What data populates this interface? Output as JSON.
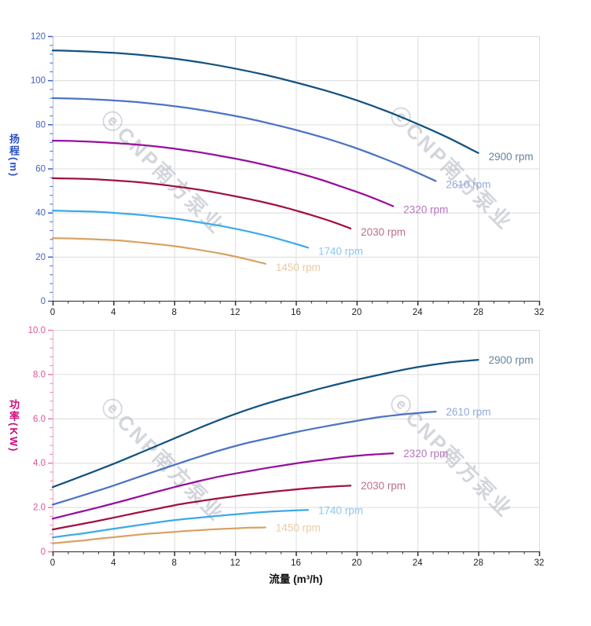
{
  "watermark": {
    "text": "ⓔCNP南方泵业",
    "color": "rgba(158,163,178,0.45)"
  },
  "chart_data": [
    {
      "type": "line",
      "title": "",
      "ylabel": "扬程(m)",
      "xlabel": "流量 (m³/h)",
      "xlim": [
        0,
        32
      ],
      "ylim": [
        0,
        120
      ],
      "x_tick_labels": [
        "0",
        "4",
        "8",
        "12",
        "16",
        "20",
        "24",
        "28",
        "32"
      ],
      "x_tick_values": [
        0,
        4,
        8,
        12,
        16,
        20,
        24,
        28,
        32
      ],
      "x_minor_step": 1,
      "y_tick_labels": [
        "0",
        "20",
        "40",
        "60",
        "80",
        "100",
        "120"
      ],
      "y_tick_values": [
        0,
        20,
        40,
        60,
        80,
        100,
        120
      ],
      "y_minor_step": 4,
      "grid": true,
      "legend": "labels-at-line-ends",
      "axis_title_color": "#2b50c4",
      "tick_label_color": "#4263c7",
      "tick_color": "#4263c7",
      "axis_line_color": "#a9bce0",
      "x_tick_label_color": "#222222",
      "x_axis_line_color": "#444444",
      "grid_color": "#dcdcdc",
      "series": [
        {
          "name": "2900 rpm",
          "rpm": 2900,
          "color": "#135380",
          "label_color": "#68839f",
          "points": [
            [
              0,
              113.5
            ],
            [
              2,
              113.1
            ],
            [
              4,
              112.4
            ],
            [
              6,
              111.3
            ],
            [
              8,
              109.8
            ],
            [
              10,
              107.8
            ],
            [
              12,
              105.3
            ],
            [
              14,
              102.4
            ],
            [
              16,
              99.0
            ],
            [
              18,
              95.2
            ],
            [
              20,
              90.9
            ],
            [
              22,
              85.9
            ],
            [
              24,
              80.2
            ],
            [
              26,
              74.0
            ],
            [
              28,
              67.0
            ]
          ]
        },
        {
          "name": "2610 rpm",
          "rpm": 2610,
          "color": "#4d74c4",
          "label_color": "#93a8dd",
          "points": [
            [
              0,
              91.9
            ],
            [
              1.8,
              91.6
            ],
            [
              3.6,
              91.0
            ],
            [
              5.4,
              90.2
            ],
            [
              7.2,
              88.9
            ],
            [
              9,
              87.3
            ],
            [
              10.8,
              85.3
            ],
            [
              12.6,
              83.0
            ],
            [
              14.4,
              80.2
            ],
            [
              16.2,
              77.1
            ],
            [
              18,
              73.6
            ],
            [
              19.8,
              69.6
            ],
            [
              21.6,
              65.0
            ],
            [
              23.4,
              59.9
            ],
            [
              25.2,
              54.3
            ]
          ]
        },
        {
          "name": "2320 rpm",
          "rpm": 2320,
          "color": "#970f9e",
          "label_color": "#b973c2",
          "points": [
            [
              0,
              72.6
            ],
            [
              1.6,
              72.4
            ],
            [
              3.2,
              71.9
            ],
            [
              4.8,
              71.2
            ],
            [
              6.4,
              70.3
            ],
            [
              8,
              69.0
            ],
            [
              9.6,
              67.4
            ],
            [
              11.2,
              65.5
            ],
            [
              12.8,
              63.4
            ],
            [
              14.4,
              60.9
            ],
            [
              16,
              58.2
            ],
            [
              17.6,
              55.0
            ],
            [
              19.2,
              51.3
            ],
            [
              20.8,
              47.4
            ],
            [
              22.4,
              42.9
            ]
          ]
        },
        {
          "name": "2030 rpm",
          "rpm": 2030,
          "color": "#a01240",
          "label_color": "#b77189",
          "points": [
            [
              0,
              55.6
            ],
            [
              1.4,
              55.4
            ],
            [
              2.8,
              55.1
            ],
            [
              4.2,
              54.5
            ],
            [
              5.6,
              53.8
            ],
            [
              7,
              52.8
            ],
            [
              8.4,
              51.6
            ],
            [
              9.8,
              50.2
            ],
            [
              11.2,
              48.5
            ],
            [
              12.6,
              46.6
            ],
            [
              14,
              44.5
            ],
            [
              15.4,
              42.1
            ],
            [
              16.8,
              39.3
            ],
            [
              18.2,
              36.3
            ],
            [
              19.6,
              32.8
            ]
          ]
        },
        {
          "name": "1740 rpm",
          "rpm": 1740,
          "color": "#3caae8",
          "label_color": "#8cc8f0",
          "points": [
            [
              0,
              40.9
            ],
            [
              1.2,
              40.7
            ],
            [
              2.4,
              40.5
            ],
            [
              3.6,
              40.1
            ],
            [
              4.8,
              39.5
            ],
            [
              6,
              38.8
            ],
            [
              7.2,
              37.9
            ],
            [
              8.4,
              36.9
            ],
            [
              9.6,
              35.6
            ],
            [
              10.8,
              34.3
            ],
            [
              12,
              32.7
            ],
            [
              13.2,
              30.9
            ],
            [
              14.4,
              28.9
            ],
            [
              15.6,
              26.6
            ],
            [
              16.8,
              24.1
            ]
          ]
        },
        {
          "name": "1450 rpm",
          "rpm": 1450,
          "color": "#d8a365",
          "label_color": "#e8cba4",
          "points": [
            [
              0,
              28.4
            ],
            [
              1,
              28.3
            ],
            [
              2,
              28.1
            ],
            [
              3,
              27.8
            ],
            [
              4,
              27.5
            ],
            [
              5,
              27.0
            ],
            [
              6,
              26.3
            ],
            [
              7,
              25.6
            ],
            [
              8,
              24.8
            ],
            [
              9,
              23.8
            ],
            [
              10,
              22.7
            ],
            [
              11,
              21.5
            ],
            [
              12,
              20.1
            ],
            [
              13,
              18.5
            ],
            [
              14,
              16.8
            ]
          ]
        }
      ]
    },
    {
      "type": "line",
      "title": "",
      "ylabel": "功率(KW)",
      "xlabel": "流量 (m³/h)",
      "xlim": [
        0,
        32
      ],
      "ylim": [
        0,
        10
      ],
      "x_tick_labels": [
        "0",
        "4",
        "8",
        "12",
        "16",
        "20",
        "24",
        "28",
        "32"
      ],
      "x_tick_values": [
        0,
        4,
        8,
        12,
        16,
        20,
        24,
        28,
        32
      ],
      "x_minor_step": 1,
      "y_tick_labels": [
        "0",
        "2.0",
        "4.0",
        "6.0",
        "8.0",
        "10.0"
      ],
      "y_tick_values": [
        0,
        2,
        4,
        6,
        8,
        10
      ],
      "y_minor_step": 0.4,
      "grid": true,
      "legend": "labels-at-line-ends",
      "axis_title_color": "#cc0d7c",
      "tick_label_color": "#e0549b",
      "tick_color": "#e87fb5",
      "axis_line_color": "#ecaccd",
      "x_tick_label_color": "#222222",
      "x_axis_line_color": "#444444",
      "grid_color": "#dcdcdc",
      "series": [
        {
          "name": "2900 rpm",
          "rpm": 2900,
          "color": "#135380",
          "label_color": "#68839f",
          "points": [
            [
              0,
              2.9
            ],
            [
              2,
              3.42
            ],
            [
              4,
              3.95
            ],
            [
              6,
              4.52
            ],
            [
              8,
              5.1
            ],
            [
              10,
              5.67
            ],
            [
              12,
              6.2
            ],
            [
              14,
              6.66
            ],
            [
              16,
              7.05
            ],
            [
              18,
              7.42
            ],
            [
              20,
              7.75
            ],
            [
              22,
              8.05
            ],
            [
              24,
              8.32
            ],
            [
              26,
              8.52
            ],
            [
              28,
              8.65
            ]
          ]
        },
        {
          "name": "2610 rpm",
          "rpm": 2610,
          "color": "#4d74c4",
          "label_color": "#93a8dd",
          "points": [
            [
              0,
              2.11
            ],
            [
              1.8,
              2.49
            ],
            [
              3.6,
              2.88
            ],
            [
              5.4,
              3.3
            ],
            [
              7.2,
              3.72
            ],
            [
              9,
              4.13
            ],
            [
              10.8,
              4.52
            ],
            [
              12.6,
              4.86
            ],
            [
              14.4,
              5.14
            ],
            [
              16.2,
              5.41
            ],
            [
              18,
              5.65
            ],
            [
              19.8,
              5.87
            ],
            [
              21.6,
              6.07
            ],
            [
              23.4,
              6.21
            ],
            [
              25.2,
              6.31
            ]
          ]
        },
        {
          "name": "2320 rpm",
          "rpm": 2320,
          "color": "#970f9e",
          "label_color": "#b973c2",
          "points": [
            [
              0,
              1.48
            ],
            [
              1.6,
              1.75
            ],
            [
              3.2,
              2.02
            ],
            [
              4.8,
              2.31
            ],
            [
              6.4,
              2.61
            ],
            [
              8,
              2.9
            ],
            [
              9.6,
              3.17
            ],
            [
              11.2,
              3.41
            ],
            [
              12.8,
              3.61
            ],
            [
              14.4,
              3.8
            ],
            [
              16,
              3.97
            ],
            [
              17.6,
              4.12
            ],
            [
              19.2,
              4.26
            ],
            [
              20.8,
              4.36
            ],
            [
              22.4,
              4.43
            ]
          ]
        },
        {
          "name": "2030 rpm",
          "rpm": 2030,
          "color": "#a01240",
          "label_color": "#b77189",
          "points": [
            [
              0,
              0.99
            ],
            [
              1.4,
              1.17
            ],
            [
              2.8,
              1.35
            ],
            [
              4.2,
              1.55
            ],
            [
              5.6,
              1.75
            ],
            [
              7,
              1.94
            ],
            [
              8.4,
              2.13
            ],
            [
              9.8,
              2.28
            ],
            [
              11.2,
              2.42
            ],
            [
              12.6,
              2.55
            ],
            [
              14,
              2.66
            ],
            [
              15.4,
              2.76
            ],
            [
              16.8,
              2.85
            ],
            [
              18.2,
              2.92
            ],
            [
              19.6,
              2.97
            ]
          ]
        },
        {
          "name": "1740 rpm",
          "rpm": 1740,
          "color": "#3caae8",
          "label_color": "#8cc8f0",
          "points": [
            [
              0,
              0.63
            ],
            [
              1.2,
              0.74
            ],
            [
              2.4,
              0.85
            ],
            [
              3.6,
              0.98
            ],
            [
              4.8,
              1.1
            ],
            [
              6,
              1.22
            ],
            [
              7.2,
              1.34
            ],
            [
              8.4,
              1.44
            ],
            [
              9.6,
              1.52
            ],
            [
              10.8,
              1.6
            ],
            [
              12,
              1.67
            ],
            [
              13.2,
              1.74
            ],
            [
              14.4,
              1.8
            ],
            [
              15.6,
              1.84
            ],
            [
              16.8,
              1.87
            ]
          ]
        },
        {
          "name": "1450 rpm",
          "rpm": 1450,
          "color": "#d8a365",
          "label_color": "#e8cba4",
          "points": [
            [
              0,
              0.36
            ],
            [
              1,
              0.43
            ],
            [
              2,
              0.49
            ],
            [
              3,
              0.57
            ],
            [
              4,
              0.64
            ],
            [
              5,
              0.71
            ],
            [
              6,
              0.78
            ],
            [
              7,
              0.83
            ],
            [
              8,
              0.88
            ],
            [
              9,
              0.93
            ],
            [
              10,
              0.97
            ],
            [
              11,
              1.01
            ],
            [
              12,
              1.04
            ],
            [
              13,
              1.07
            ],
            [
              14,
              1.08
            ]
          ]
        }
      ]
    }
  ]
}
